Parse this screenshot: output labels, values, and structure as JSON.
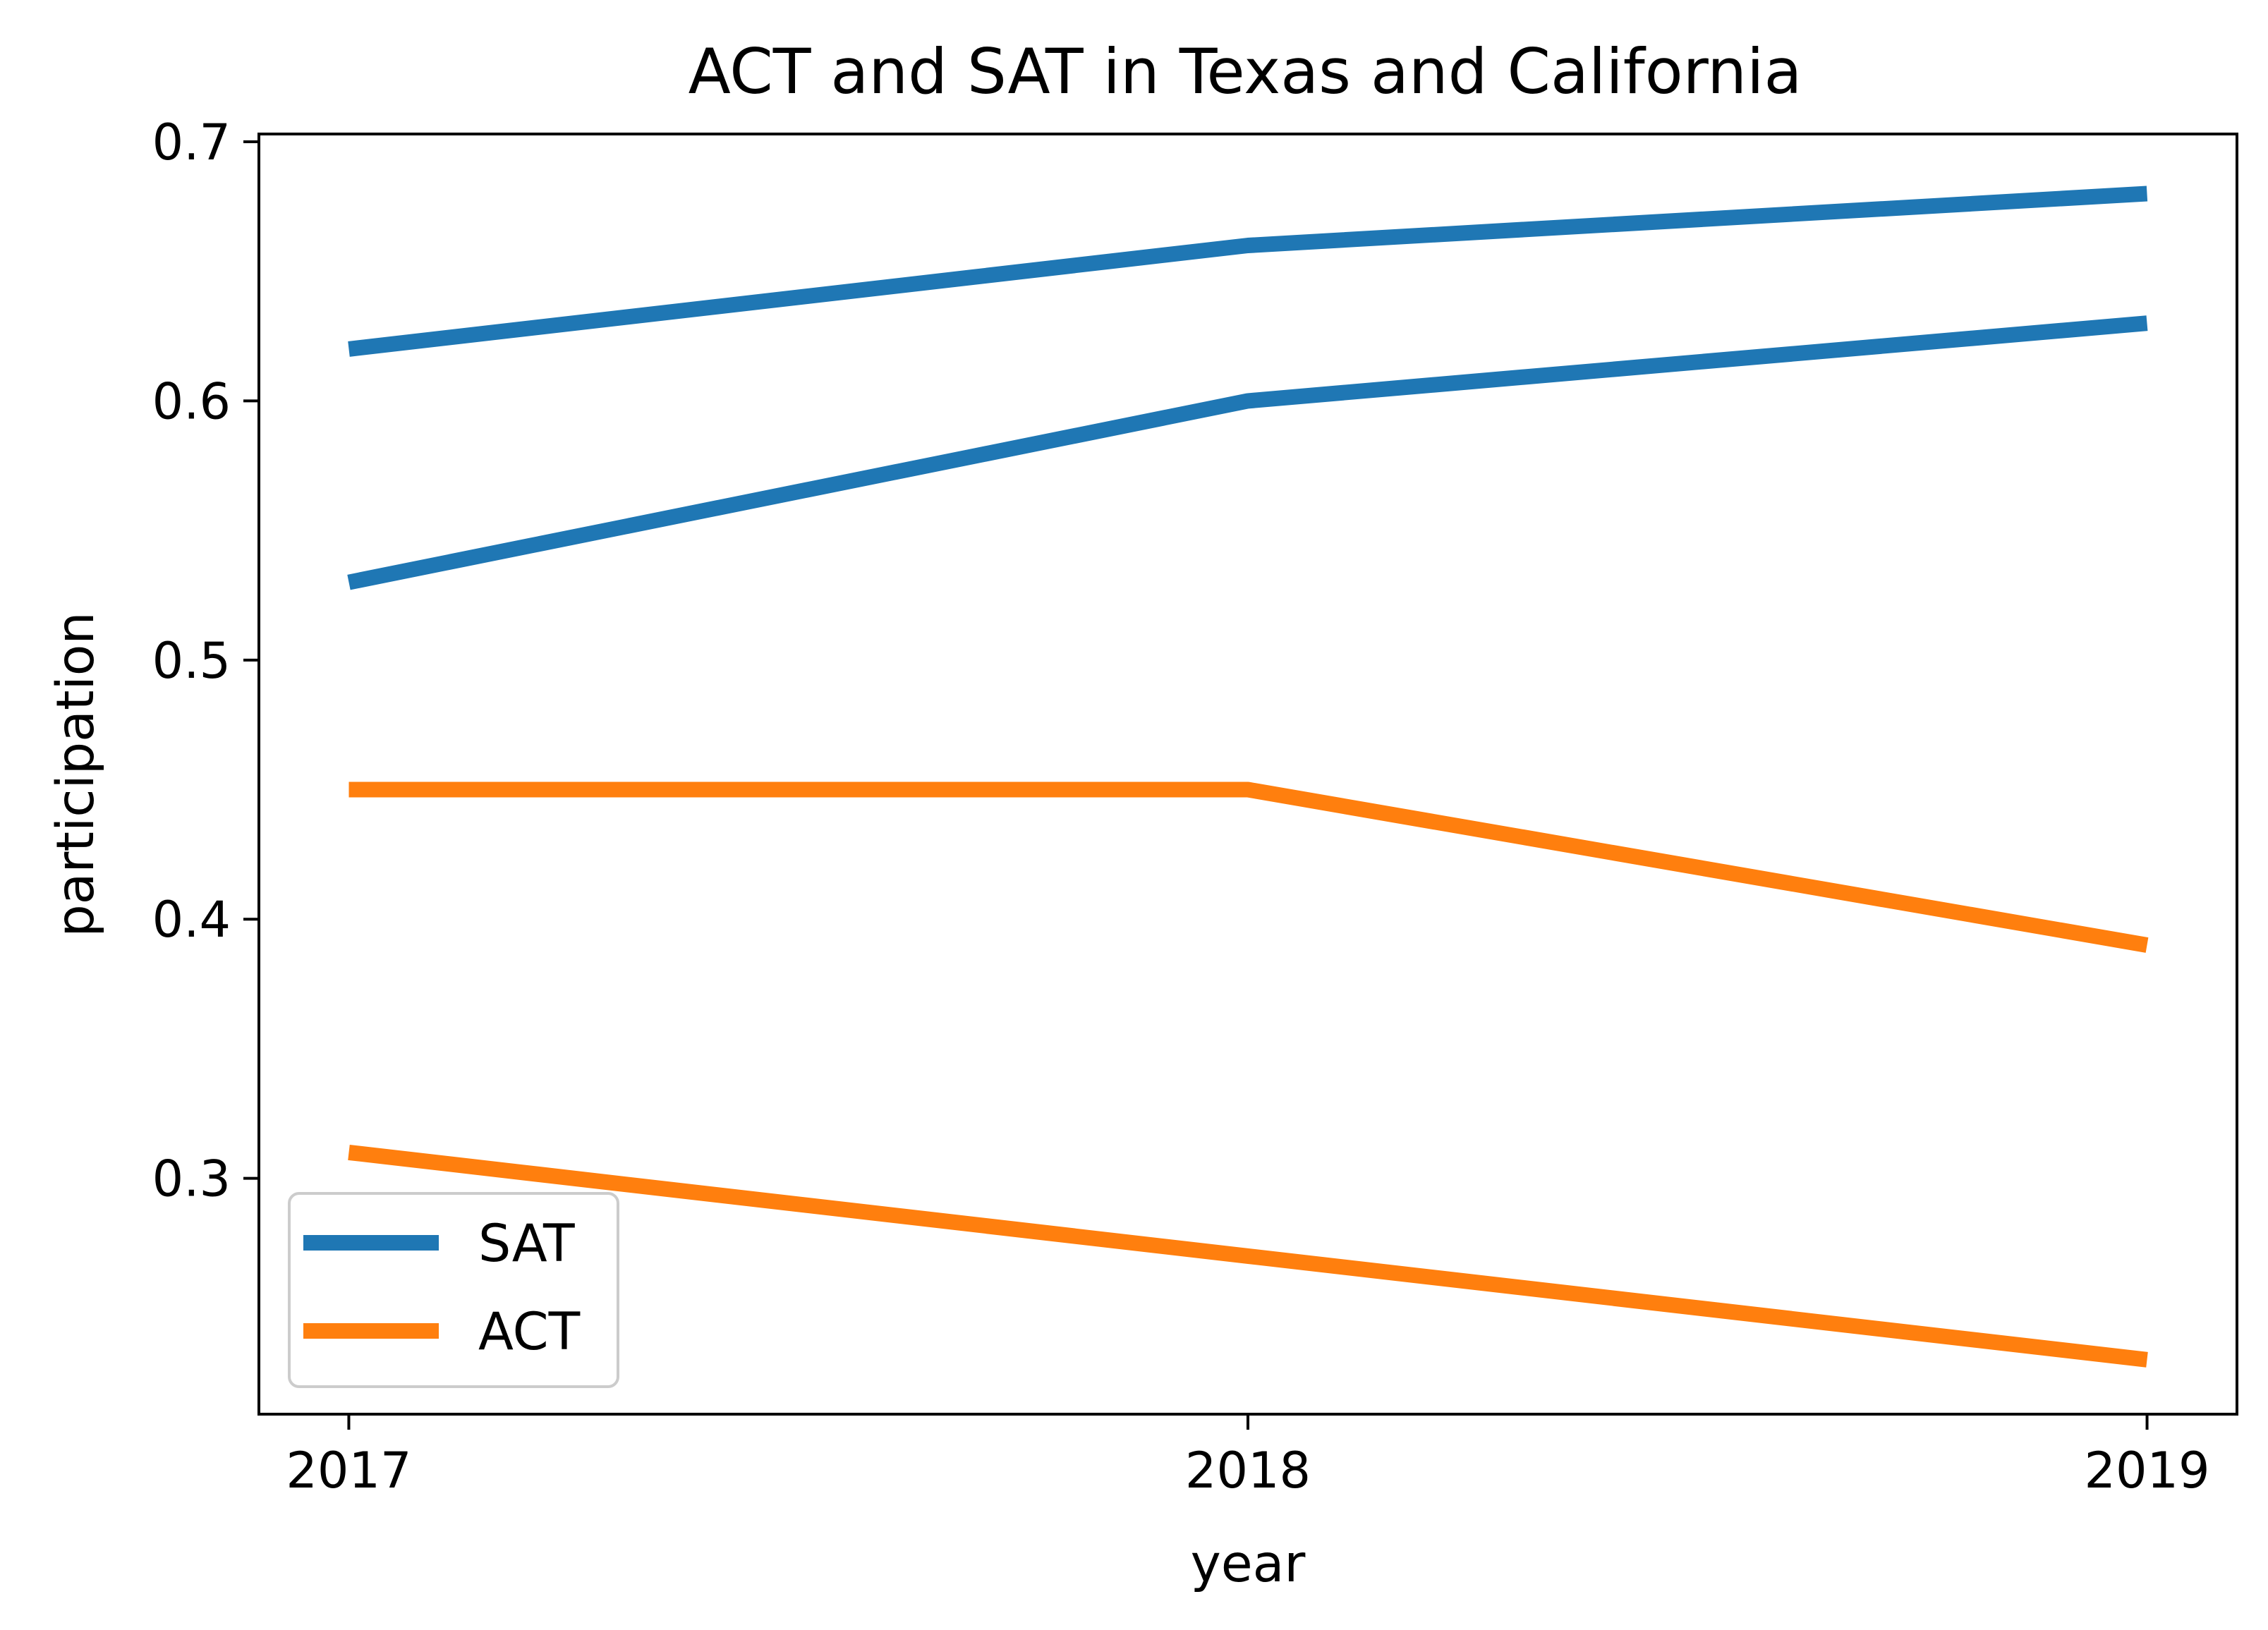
{
  "chart_data": {
    "type": "line",
    "title": "ACT and SAT in Texas and California",
    "xlabel": "year",
    "ylabel": "participation",
    "x": [
      2017,
      2018,
      2019
    ],
    "x_ticks": [
      "2017",
      "2018",
      "2019"
    ],
    "y_ticks": [
      "0.3",
      "0.4",
      "0.5",
      "0.6",
      "0.7"
    ],
    "xlim": [
      2016.9,
      2019.1
    ],
    "ylim": [
      0.209,
      0.703
    ],
    "grid": false,
    "legend_position": "lower-left",
    "legend": [
      {
        "label": "SAT",
        "color": "#1f77b4"
      },
      {
        "label": "ACT",
        "color": "#ff7f0e"
      }
    ],
    "series": [
      {
        "values": [
          0.62,
          0.66,
          0.68
        ],
        "color": "#1f77b4",
        "legend_label": "SAT"
      },
      {
        "values": [
          0.53,
          0.6,
          0.63
        ],
        "color": "#1f77b4",
        "legend_label": "SAT"
      },
      {
        "values": [
          0.45,
          0.45,
          0.39
        ],
        "color": "#ff7f0e",
        "legend_label": "ACT"
      },
      {
        "values": [
          0.31,
          0.27,
          0.23
        ],
        "color": "#ff7f0e",
        "legend_label": "ACT"
      }
    ]
  }
}
